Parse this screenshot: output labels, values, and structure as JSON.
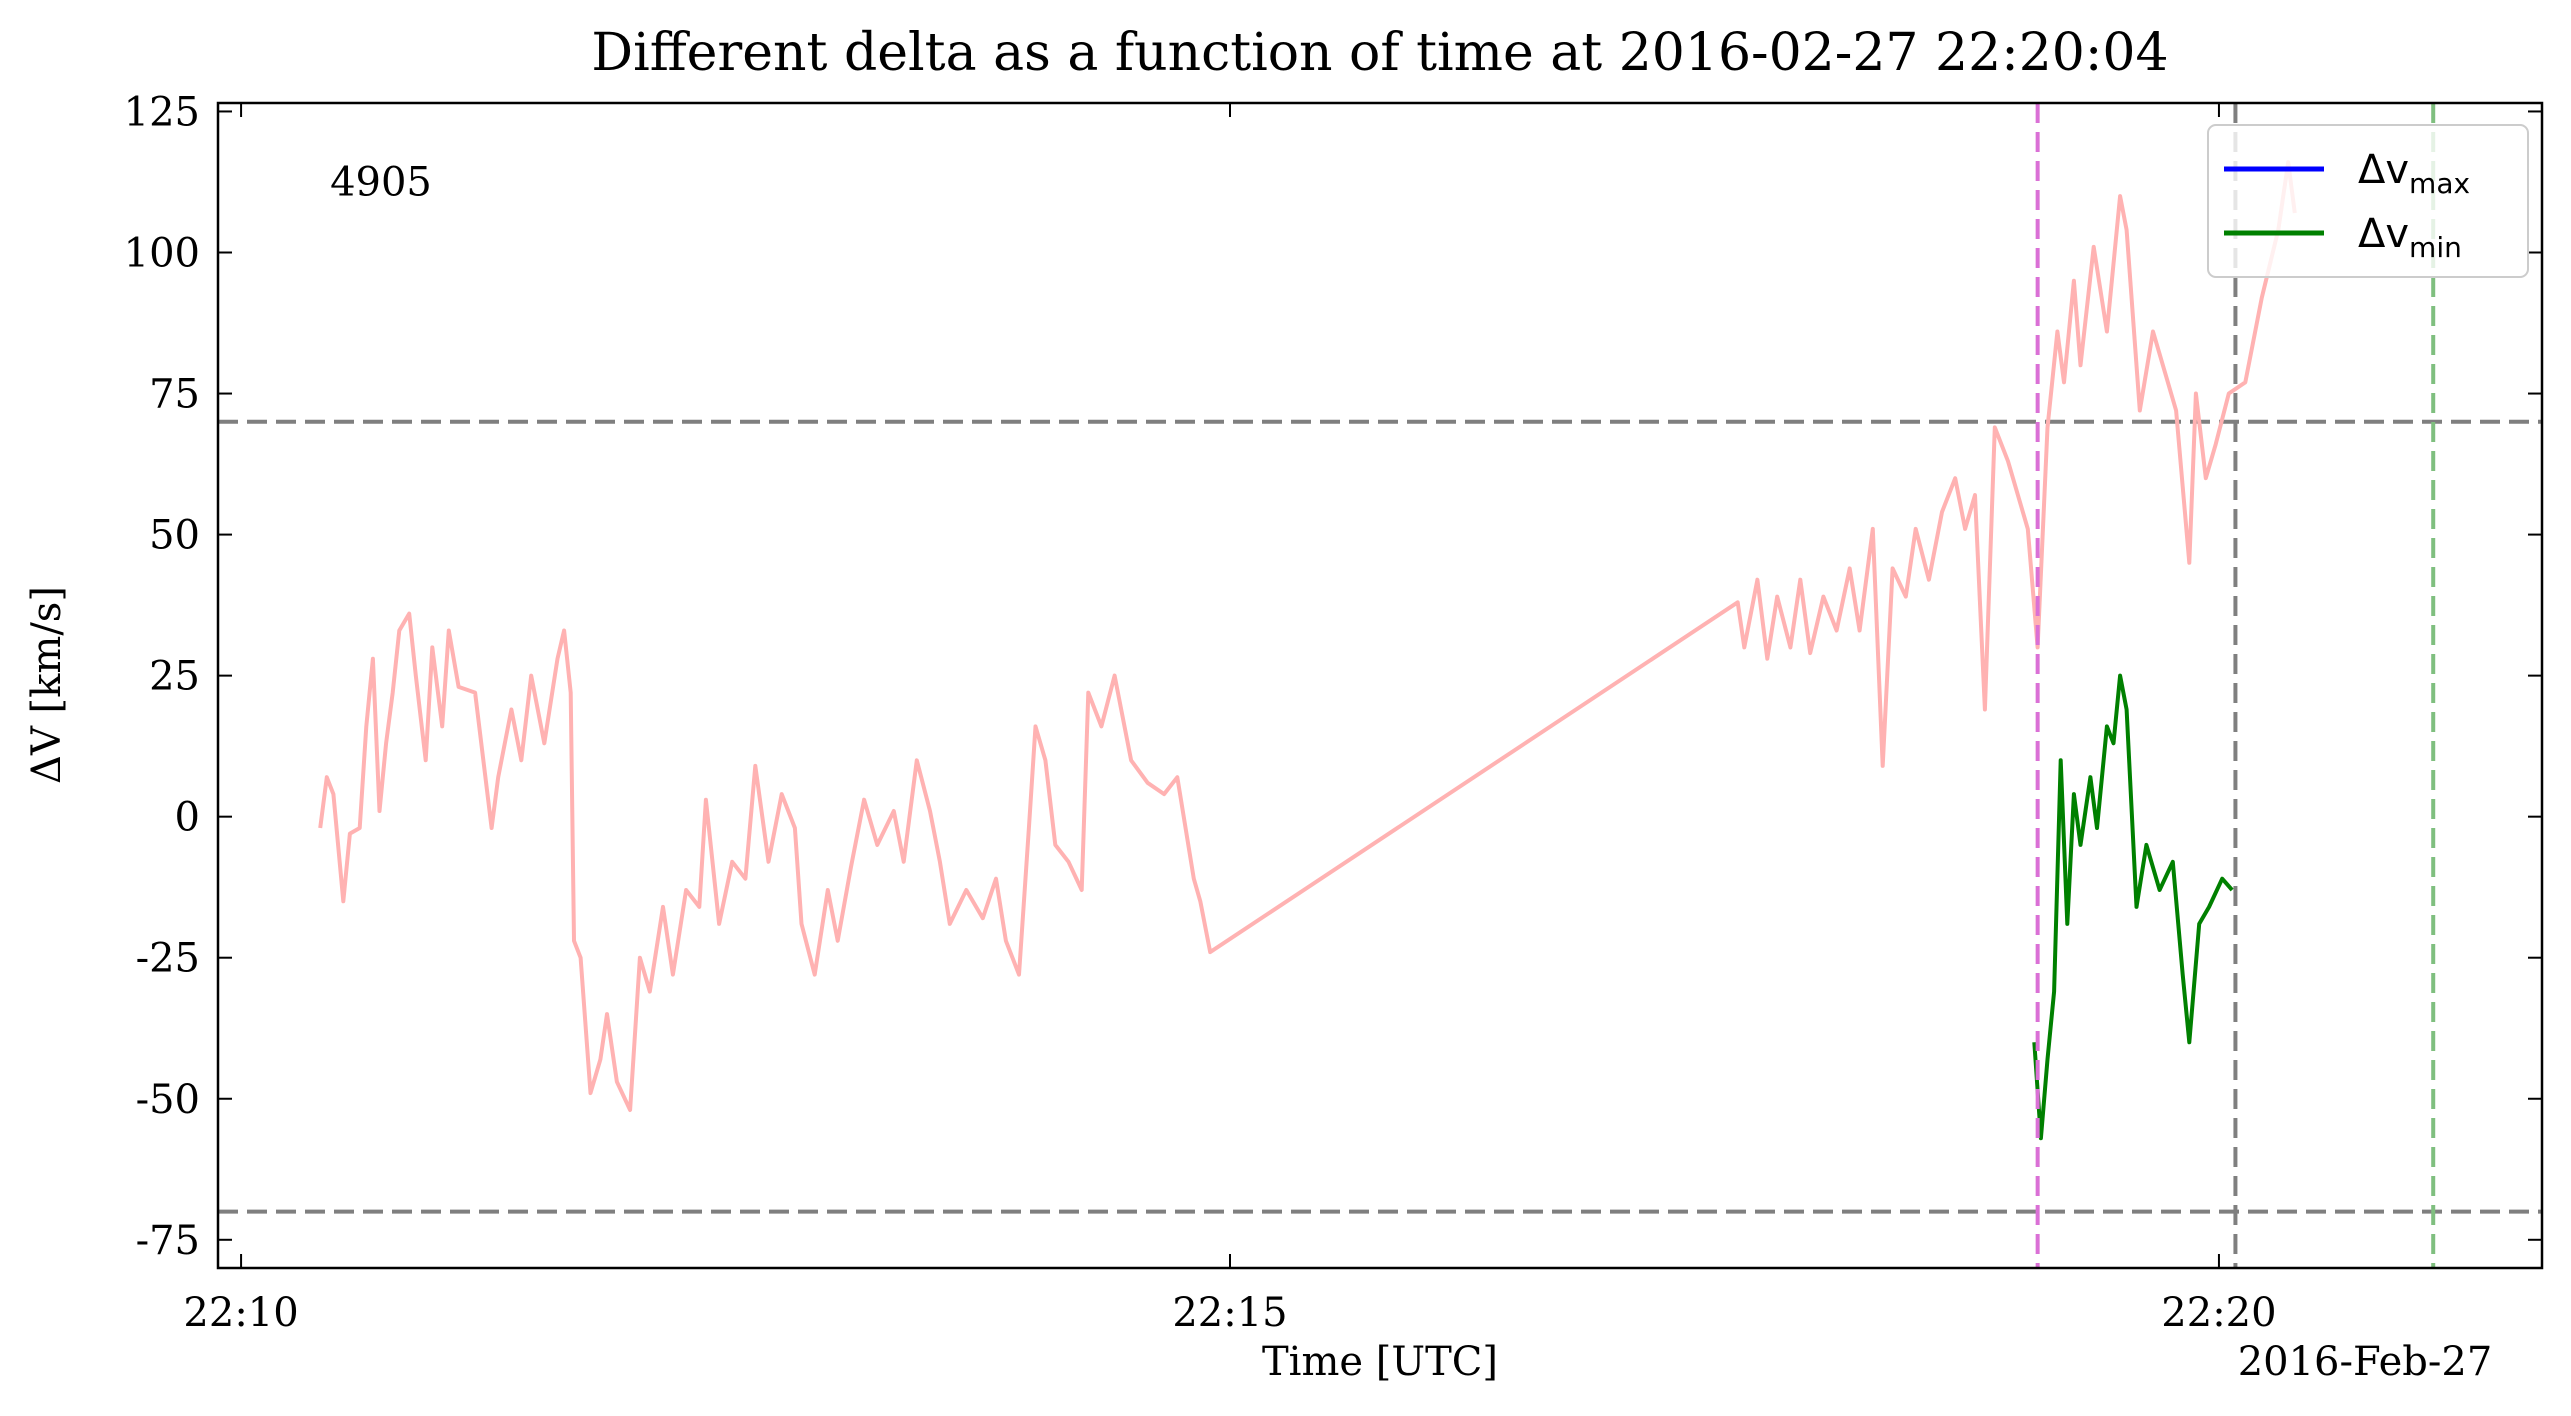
{
  "chart_data": {
    "type": "line",
    "title": "Different delta as a function of time at 2016-02-27 22:20:04",
    "xlabel": "Time [UTC]",
    "ylabel": "ΔV [km/s]",
    "x_offset_label": "2016-Feb-27",
    "xlim": [
      "22:09:53",
      "22:21:38"
    ],
    "xticks": [
      "22:10",
      "22:15",
      "22:20"
    ],
    "ylim": [
      -80,
      126.5
    ],
    "yticks": [
      -75,
      -50,
      -25,
      0,
      25,
      50,
      75,
      100,
      125
    ],
    "legend": "upper right",
    "hlines": [
      {
        "value": 70,
        "color": "#7f7f7f"
      },
      {
        "value": -70,
        "color": "#7f7f7f"
      }
    ],
    "vlines": [
      {
        "x": "22:19:05",
        "color": "#da70d6"
      },
      {
        "x": "22:20:05",
        "color": "#7f7f7f"
      },
      {
        "x": "22:21:05",
        "color": "#7fbf7f"
      }
    ],
    "annotations": [
      {
        "text": "4905",
        "x": "22:10:27",
        "y": 112.6,
        "color": "#ff0000"
      }
    ],
    "series": [
      {
        "color": "#ffb2b2",
        "x": [
          "22:10:24",
          "22:10:26",
          "22:10:28",
          "22:10:31",
          "22:10:33",
          "22:10:36",
          "22:10:38",
          "22:10:40",
          "22:10:42",
          "22:10:44",
          "22:10:46",
          "22:10:48",
          "22:10:51",
          "22:10:53",
          "22:10:56",
          "22:10:58",
          "22:11:01",
          "22:11:03",
          "22:11:06",
          "22:11:11",
          "22:11:16",
          "22:11:18",
          "22:11:22",
          "22:11:25",
          "22:11:28",
          "22:11:32",
          "22:11:36",
          "22:11:38",
          "22:11:40",
          "22:11:41",
          "22:11:43",
          "22:11:46",
          "22:11:49",
          "22:11:51",
          "22:11:54",
          "22:11:58",
          "22:12:01",
          "22:12:04",
          "22:12:08",
          "22:12:11",
          "22:12:15",
          "22:12:19",
          "22:12:21",
          "22:12:25",
          "22:12:29",
          "22:12:33",
          "22:12:36",
          "22:12:40",
          "22:12:44",
          "22:12:48",
          "22:12:50",
          "22:12:54",
          "22:12:58",
          "22:13:01",
          "22:13:05",
          "22:13:09",
          "22:13:13",
          "22:13:18",
          "22:13:21",
          "22:13:25",
          "22:13:29",
          "22:13:32",
          "22:13:35",
          "22:13:40",
          "22:13:45",
          "22:13:49",
          "22:13:52",
          "22:13:56",
          "22:13:59",
          "22:14:01",
          "22:14:04",
          "22:14:07",
          "22:14:11",
          "22:14:15",
          "22:14:17",
          "22:14:21",
          "22:14:25",
          "22:14:30",
          "22:14:35",
          "22:14:40",
          "22:14:44",
          "22:14:49",
          "22:14:51",
          "22:14:54",
          "22:17:34",
          "22:17:36",
          "22:17:40",
          "22:17:43",
          "22:17:46",
          "22:17:50",
          "22:17:53",
          "22:17:56",
          "22:18:00",
          "22:18:04",
          "22:18:08",
          "22:18:11",
          "22:18:15",
          "22:18:18",
          "22:18:21",
          "22:18:25",
          "22:18:28",
          "22:18:32",
          "22:18:36",
          "22:18:40",
          "22:18:43",
          "22:18:46",
          "22:18:49",
          "22:18:52",
          "22:18:56",
          "22:18:59",
          "22:19:02",
          "22:19:05",
          "22:19:08",
          "22:19:11",
          "22:19:13",
          "22:19:16",
          "22:19:18",
          "22:19:22",
          "22:19:26",
          "22:19:30",
          "22:19:32",
          "22:19:36",
          "22:19:40",
          "22:19:43",
          "22:19:47",
          "22:19:51",
          "22:19:53",
          "22:19:56",
          "22:19:59",
          "22:20:03",
          "22:20:08",
          "22:20:13",
          "22:20:18",
          "22:20:21",
          "22:20:23"
        ],
        "values": [
          -2,
          7,
          4,
          -15,
          -3,
          -2,
          16,
          28,
          1,
          13,
          22,
          33,
          36,
          25,
          10,
          30,
          16,
          33,
          23,
          22,
          -2,
          7,
          19,
          10,
          25,
          13,
          28,
          33,
          22,
          -22,
          -25,
          -49,
          -43,
          -35,
          -47,
          -52,
          -25,
          -31,
          -16,
          -28,
          -13,
          -16,
          3,
          -19,
          -8,
          -11,
          9,
          -8,
          4,
          -2,
          -19,
          -28,
          -13,
          -22,
          -9,
          3,
          -5,
          1,
          -8,
          10,
          1,
          -8,
          -19,
          -13,
          -18,
          -11,
          -22,
          -28,
          -2,
          16,
          10,
          -5,
          -8,
          -13,
          22,
          16,
          25,
          10,
          6,
          4,
          7,
          -11,
          -15,
          -24,
          38,
          30,
          42,
          28,
          39,
          30,
          42,
          29,
          39,
          33,
          44,
          33,
          51,
          9,
          44,
          39,
          51,
          42,
          54,
          60,
          51,
          57,
          19,
          69,
          63,
          57,
          51,
          30,
          69,
          86,
          77,
          95,
          80,
          101,
          86,
          110,
          104,
          72,
          86,
          80,
          72,
          45,
          75,
          60,
          66,
          75,
          77,
          92,
          104,
          116,
          107
        ]
      },
      {
        "name": "Δv",
        "subscript": "max",
        "color": "#0000ff",
        "x": [],
        "values": []
      },
      {
        "name": "Δv",
        "subscript": "min",
        "color": "#008000",
        "x": [
          "22:19:04",
          "22:19:06",
          "22:19:08",
          "22:19:10",
          "22:19:12",
          "22:19:14",
          "22:19:16",
          "22:19:18",
          "22:19:21",
          "22:19:23",
          "22:19:26",
          "22:19:28",
          "22:19:30",
          "22:19:32",
          "22:19:35",
          "22:19:38",
          "22:19:42",
          "22:19:46",
          "22:19:49",
          "22:19:51",
          "22:19:54",
          "22:19:57",
          "22:20:01",
          "22:20:04"
        ],
        "values": [
          -40,
          -57,
          -43,
          -31,
          10,
          -19,
          4,
          -5,
          7,
          -2,
          16,
          13,
          25,
          19,
          -16,
          -5,
          -13,
          -8,
          -28,
          -40,
          -19,
          -16,
          -11,
          -13
        ]
      }
    ]
  }
}
